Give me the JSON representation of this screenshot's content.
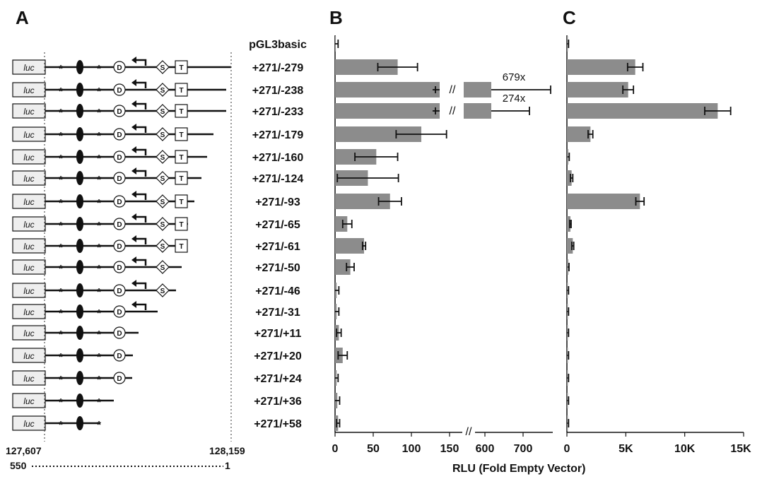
{
  "panel_letters": {
    "a": "A",
    "b": "B",
    "c": "C"
  },
  "colors": {
    "bar": "#8c8c8c",
    "ink": "#111111"
  },
  "rows": [
    {
      "label": "pGL3basic"
    },
    {
      "label": "+271/-279"
    },
    {
      "label": "+271/-238"
    },
    {
      "label": "+271/-233"
    },
    {
      "label": "+271/-179"
    },
    {
      "label": "+271/-160"
    },
    {
      "label": "+271/-124"
    },
    {
      "label": "+271/-93"
    },
    {
      "label": "+271/-65"
    },
    {
      "label": "+271/-61"
    },
    {
      "label": "+271/-50"
    },
    {
      "label": "+271/-46"
    },
    {
      "label": "+271/-31"
    },
    {
      "label": "+271/+11"
    },
    {
      "label": "+271/+20"
    },
    {
      "label": "+271/+24"
    },
    {
      "label": "+271/+36"
    },
    {
      "label": "+271/+58"
    }
  ],
  "construct_diagram": {
    "luc_label": "luc",
    "diamond_label": "S",
    "circle_label": "D",
    "box_label": "T",
    "star_glyph": "*",
    "left_coord": "127,607",
    "right_coord": "128,159",
    "bottom_scale_left": "550",
    "bottom_scale_right": "1",
    "elements_present": [
      "none",
      "DST",
      "DST",
      "DST",
      "DST",
      "DST",
      "DST",
      "DST",
      "DST",
      "DST",
      "DS",
      "DS",
      "D-arrow",
      "D",
      "D",
      "D",
      "none",
      "none"
    ]
  },
  "chart_data": [
    {
      "type": "bar",
      "panel": "B",
      "orientation": "horizontal",
      "categories": [
        "pGL3basic",
        "+271/-279",
        "+271/-238",
        "+271/-233",
        "+271/-179",
        "+271/-160",
        "+271/-124",
        "+271/-93",
        "+271/-65",
        "+271/-61",
        "+271/-50",
        "+271/-46",
        "+271/-31",
        "+271/+11",
        "+271/+20",
        "+271/+24",
        "+271/+36",
        "+271/+58"
      ],
      "values": [
        1,
        82,
        679,
        274,
        113,
        54,
        43,
        72,
        16,
        38,
        20,
        2,
        2,
        5,
        10,
        2,
        3,
        4
      ],
      "errors": [
        3,
        26,
        85,
        55,
        33,
        28,
        40,
        15,
        6,
        2,
        5,
        3,
        3,
        3,
        6,
        2,
        3,
        2
      ],
      "annotations": [
        "679x",
        "274x"
      ],
      "axis_break": "//",
      "xticks_left": [
        "0",
        "50",
        "100",
        "150"
      ],
      "xticks_right": [
        "600",
        "700"
      ],
      "xlim_left": [
        0,
        150
      ],
      "xlim_right": [
        560,
        780
      ]
    },
    {
      "type": "bar",
      "panel": "C",
      "orientation": "horizontal",
      "categories": [
        "pGL3basic",
        "+271/-279",
        "+271/-238",
        "+271/-233",
        "+271/-179",
        "+271/-160",
        "+271/-124",
        "+271/-93",
        "+271/-65",
        "+271/-61",
        "+271/-50",
        "+271/-46",
        "+271/-31",
        "+271/+11",
        "+271/+20",
        "+271/+24",
        "+271/+36",
        "+271/+58"
      ],
      "values": [
        80,
        5800,
        5200,
        12800,
        2000,
        120,
        400,
        6200,
        300,
        500,
        120,
        80,
        80,
        80,
        80,
        80,
        80,
        80
      ],
      "errors": [
        60,
        650,
        450,
        1100,
        200,
        80,
        100,
        350,
        60,
        80,
        60,
        60,
        60,
        60,
        60,
        60,
        60,
        60
      ],
      "xticks": [
        "0",
        "5K",
        "10K",
        "15K"
      ],
      "xlim": [
        0,
        15000
      ]
    }
  ],
  "shared_xlabel": "RLU (Fold Empty Vector)"
}
